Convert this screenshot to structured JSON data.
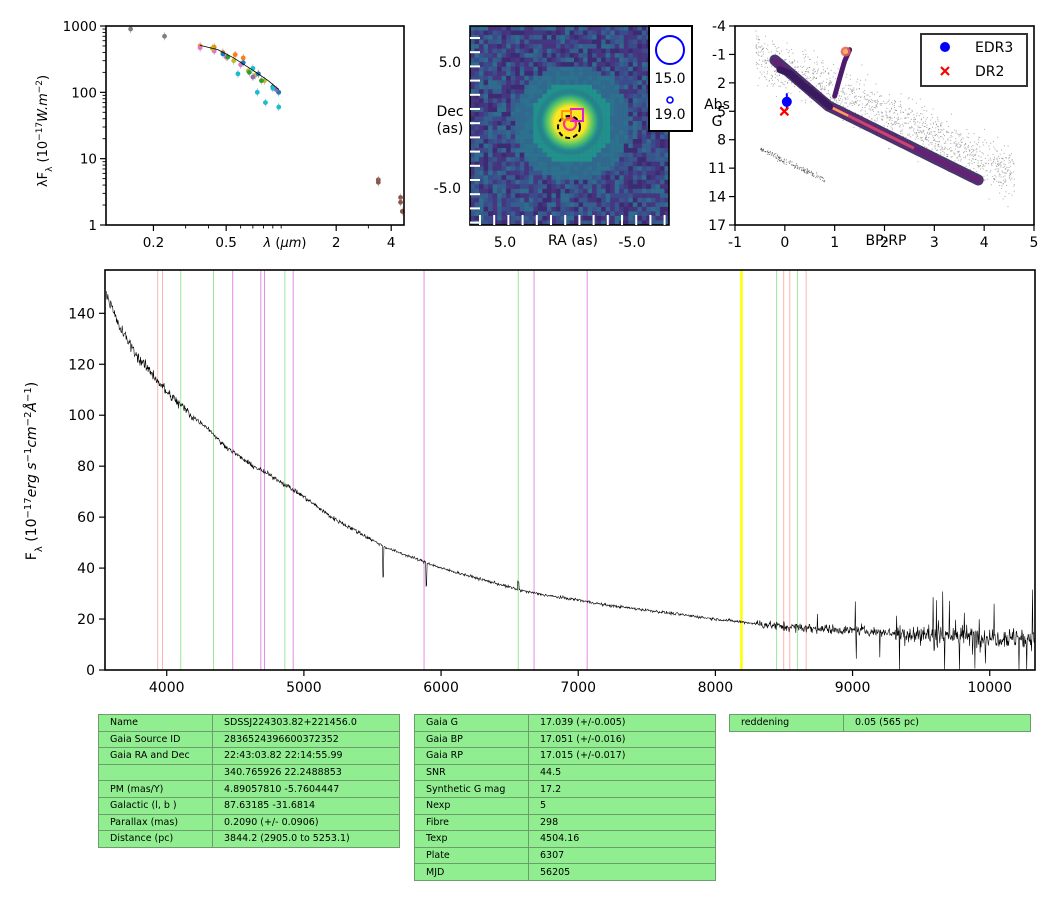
{
  "chart_data": [
    {
      "type": "scatter",
      "panel": "sed",
      "xlabel": "λ (μm)",
      "ylabel": "λF_λ (10^-17 W.m^-2)",
      "xscale": "log",
      "yscale": "log",
      "xlim": [
        0.11,
        4.7
      ],
      "ylim": [
        1,
        1000
      ],
      "x_ticks": [
        "0.2",
        "0.5",
        "2",
        "4"
      ],
      "y_ticks": [
        "1",
        "10",
        "100",
        "1000"
      ],
      "series": [
        {
          "color": "#7f7f7f",
          "x": [
            0.15,
            0.23
          ],
          "y": [
            900,
            700
          ]
        },
        {
          "color": "#ff7f0e",
          "x": [
            0.36,
            0.43,
            0.48,
            0.56,
            0.62
          ],
          "y": [
            500,
            480,
            400,
            370,
            330
          ]
        },
        {
          "color": "#e377c2",
          "x": [
            0.36,
            0.43,
            0.5,
            0.6,
            0.75,
            0.9
          ],
          "y": [
            470,
            420,
            340,
            260,
            190,
            120
          ]
        },
        {
          "color": "#bcbd22",
          "x": [
            0.42,
            0.55,
            0.66,
            0.72,
            0.81
          ],
          "y": [
            460,
            300,
            210,
            180,
            150
          ]
        },
        {
          "color": "#2ca02c",
          "x": [
            0.51,
            0.67,
            0.78
          ],
          "y": [
            340,
            200,
            150
          ]
        },
        {
          "color": "#1f77b4",
          "x": [
            0.48,
            0.62,
            0.75,
            0.9,
            0.97
          ],
          "y": [
            380,
            280,
            190,
            120,
            100
          ]
        },
        {
          "color": "#9467bd",
          "x": [
            0.7,
            0.94
          ],
          "y": [
            170,
            110
          ]
        },
        {
          "color": "#17becf",
          "x": [
            0.58,
            0.7,
            0.74,
            0.82,
            0.9,
            0.97
          ],
          "y": [
            190,
            230,
            100,
            70,
            115,
            60
          ]
        },
        {
          "color": "#8c564b",
          "x": [
            3.4,
            3.4,
            4.5,
            4.5,
            4.6
          ],
          "y": [
            4.8,
            4.4,
            2.6,
            2.2,
            1.6
          ]
        }
      ]
    },
    {
      "type": "heatmap",
      "panel": "image",
      "xlabel": "RA (as)",
      "ylabel": "Dec (as)",
      "xlim": [
        10.5,
        -10.5
      ],
      "ylim": [
        -10.5,
        10.5
      ],
      "x_ticks": [
        "5.0",
        "-5.0"
      ],
      "y_ticks": [
        "5.0",
        "-5.0"
      ],
      "legend": [
        "15.0",
        "19.0"
      ],
      "source_center": [
        0.0,
        0.0
      ]
    },
    {
      "type": "scatter",
      "panel": "hr",
      "xlabel": "BP-RP",
      "ylabel": "Abs G",
      "xlim": [
        -1,
        5
      ],
      "ylim": [
        17,
        -4
      ],
      "x_ticks": [
        "-1",
        "0",
        "1",
        "2",
        "3",
        "4",
        "5"
      ],
      "y_ticks": [
        "-4",
        "-1",
        "2",
        "5",
        "8",
        "11",
        "14",
        "17"
      ],
      "legend": [
        {
          "name": "EDR3",
          "color": "#0000ff",
          "marker": "circle"
        },
        {
          "name": "DR2",
          "color": "#ff0000",
          "marker": "x"
        }
      ],
      "points": [
        {
          "series": "EDR3",
          "x": 0.04,
          "y": 4.0,
          "yerr": 0.9
        },
        {
          "series": "DR2",
          "x": -0.01,
          "y": 5.0
        }
      ]
    },
    {
      "type": "line",
      "panel": "spectrum",
      "xlabel": "",
      "ylabel": "F_λ (10^-17 erg s^-1 cm^-2 Å^-1)",
      "xlim": [
        3550,
        10330
      ],
      "ylim": [
        0,
        157
      ],
      "x_ticks": [
        "4000",
        "5000",
        "6000",
        "7000",
        "8000",
        "9000",
        "10000"
      ],
      "y_ticks": [
        "0",
        "20",
        "40",
        "60",
        "80",
        "100",
        "120",
        "140"
      ],
      "continuum": [
        [
          3560,
          148
        ],
        [
          3650,
          135
        ],
        [
          3800,
          122
        ],
        [
          3900,
          116
        ],
        [
          4000,
          109
        ],
        [
          4100,
          104
        ],
        [
          4200,
          99
        ],
        [
          4300,
          95
        ],
        [
          4400,
          89
        ],
        [
          4500,
          85
        ],
        [
          4600,
          81
        ],
        [
          4700,
          78
        ],
        [
          4800,
          75
        ],
        [
          5000,
          68
        ],
        [
          5200,
          60
        ],
        [
          5400,
          54
        ],
        [
          5600,
          48
        ],
        [
          5800,
          44
        ],
        [
          6000,
          40
        ],
        [
          6200,
          37
        ],
        [
          6400,
          34
        ],
        [
          6600,
          31
        ],
        [
          6800,
          29
        ],
        [
          7000,
          27.5
        ],
        [
          7200,
          25.5
        ],
        [
          7500,
          23.5
        ],
        [
          8000,
          20
        ],
        [
          8500,
          17
        ],
        [
          9000,
          15.5
        ],
        [
          9500,
          14
        ],
        [
          10000,
          13
        ],
        [
          10330,
          12.5
        ]
      ],
      "reference_lines": [
        {
          "x": 3934,
          "color": "#ffb3b3"
        },
        {
          "x": 3969,
          "color": "#ffb3b3"
        },
        {
          "x": 4102,
          "color": "#9be89b"
        },
        {
          "x": 4341,
          "color": "#9be89b"
        },
        {
          "x": 4481,
          "color": "#e58be5"
        },
        {
          "x": 4686,
          "color": "#e58be5"
        },
        {
          "x": 4713,
          "color": "#e58be5"
        },
        {
          "x": 4861,
          "color": "#9be89b"
        },
        {
          "x": 4922,
          "color": "#e58be5"
        },
        {
          "x": 5876,
          "color": "#e58be5"
        },
        {
          "x": 6563,
          "color": "#9be89b"
        },
        {
          "x": 6678,
          "color": "#e58be5"
        },
        {
          "x": 7065,
          "color": "#e58be5"
        },
        {
          "x": 8190,
          "color": "#ffff00",
          "width": 2.5
        },
        {
          "x": 8446,
          "color": "#9be89b"
        },
        {
          "x": 8498,
          "color": "#ffb3b3"
        },
        {
          "x": 8542,
          "color": "#ffb3b3"
        },
        {
          "x": 8598,
          "color": "#9be89b"
        },
        {
          "x": 8662,
          "color": "#ffb3b3"
        }
      ]
    }
  ],
  "tables": {
    "star": [
      [
        "Name",
        "SDSSJ224303.82+221456.0"
      ],
      [
        "Gaia Source ID",
        "2836524396600372352"
      ],
      [
        "Gaia RA and Dec",
        "22:43:03.82    22:14:55.99"
      ],
      [
        "",
        "340.765926    22.2488853"
      ],
      [
        "PM (mas/Y)",
        "4.89057810    -5.7604447"
      ],
      [
        "Galactic (l, b )",
        "87.63185    -31.6814"
      ],
      [
        "Parallax (mas)",
        "0.2090 (+/- 0.0906)"
      ],
      [
        "Distance (pc)",
        "3844.2 (2905.0 to 5253.1)"
      ]
    ],
    "phot": [
      [
        "Gaia G",
        "17.039 (+/-0.005)"
      ],
      [
        "Gaia BP",
        "17.051 (+/-0.016)"
      ],
      [
        "Gaia RP",
        "17.015 (+/-0.017)"
      ],
      [
        "SNR",
        "44.5"
      ],
      [
        "Synthetic G mag",
        "17.2"
      ],
      [
        "Nexp",
        "5"
      ],
      [
        "Fibre",
        "298"
      ],
      [
        "Texp",
        "4504.16"
      ],
      [
        "Plate",
        "6307"
      ],
      [
        "MJD",
        "56205"
      ]
    ],
    "extra": [
      [
        "reddening",
        "0.05 (565 pc)"
      ]
    ]
  }
}
